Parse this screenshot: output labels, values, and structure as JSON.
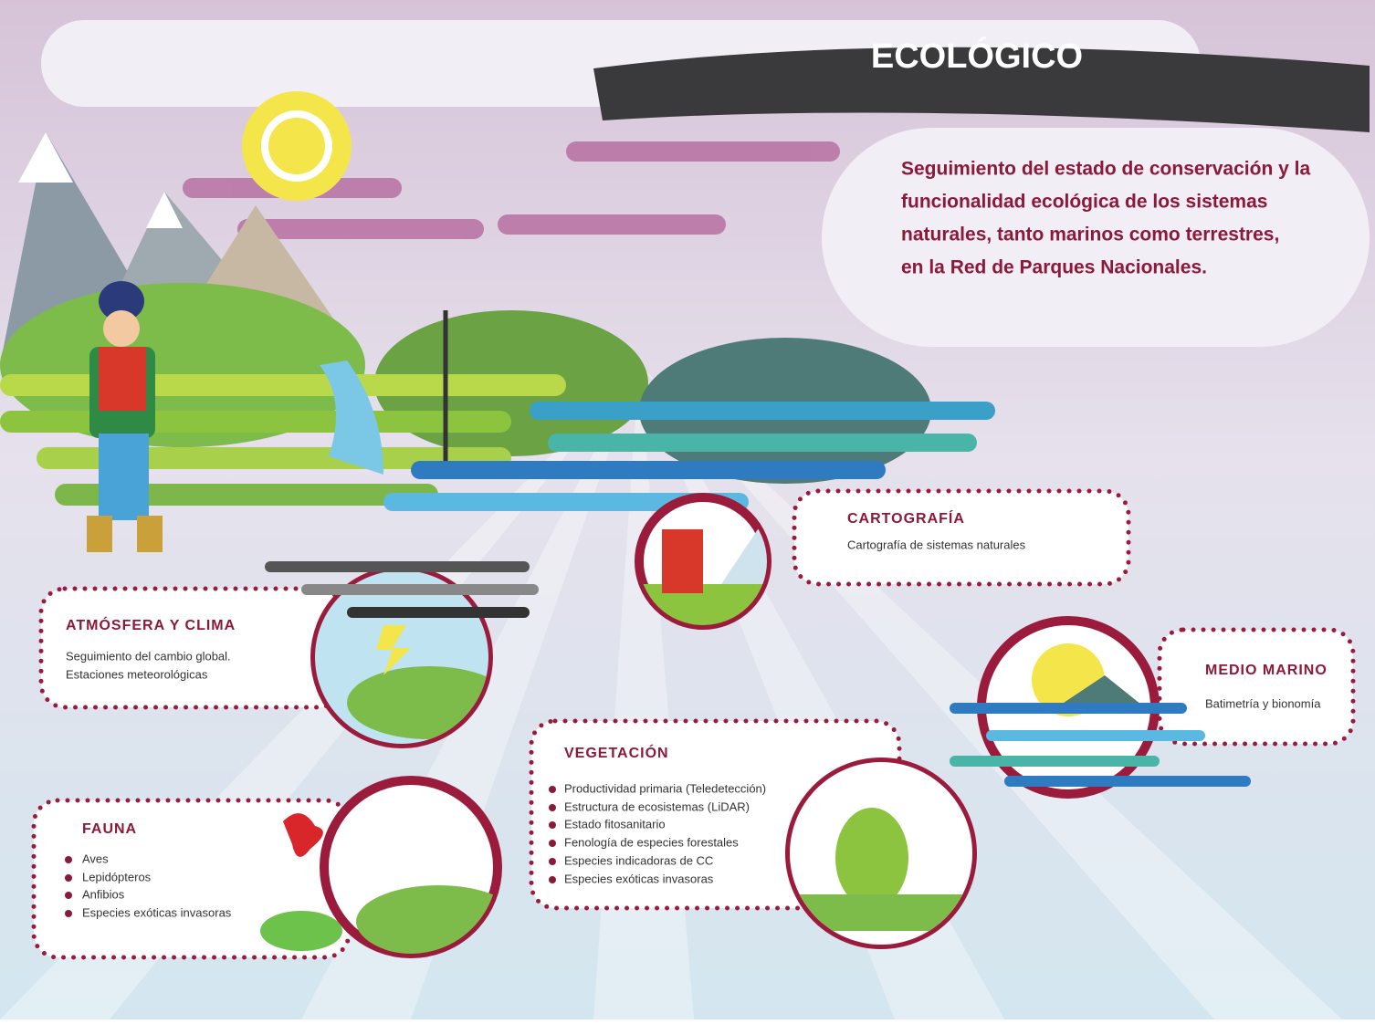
{
  "header": {
    "title": "ECOLÓGICO",
    "subtitle_lines": [
      "Seguimiento del estado de conservación y la",
      "funcionalidad ecológica de los sistemas",
      "naturales, tanto marinos como terrestres,",
      "en la Red de Parques Nacionales."
    ]
  },
  "cards": [
    {
      "title": "CARTOGRAFÍA",
      "lines": [
        "Cartografía de sistemas naturales"
      ]
    },
    {
      "title": "ATMÓSFERA Y CLIMA",
      "lines": [
        "Seguimiento del cambio global.",
        "Estaciones meteorológicas"
      ]
    },
    {
      "title": "MEDIO MARINO",
      "lines": [
        "Batimetría y bionomía"
      ]
    },
    {
      "title": "VEGETACIÓN",
      "items": [
        "Productividad primaria (Teledetección)",
        "Estructura de ecosistemas (LiDAR)",
        "Estado fitosanitario",
        "Fenología de especies forestales",
        "Especies indicadoras de CC",
        "Especies exóticas invasoras"
      ]
    },
    {
      "title": "FAUNA",
      "items": [
        "Aves",
        "Lepidópteros",
        "Anfibios",
        "Especies exóticas invasoras"
      ]
    }
  ]
}
